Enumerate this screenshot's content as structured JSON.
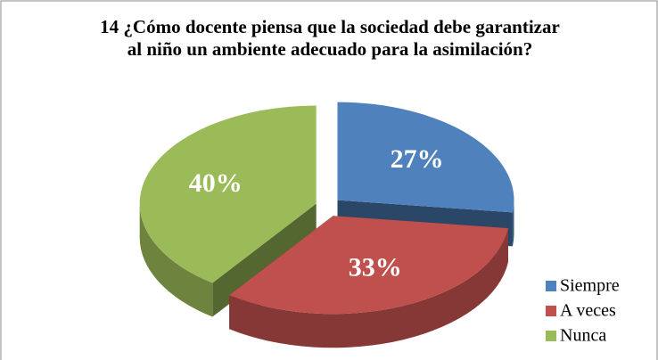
{
  "chart_data": {
    "type": "pie",
    "title": "14 ¿Cómo docente piensa que la sociedad debe garantizar al niño un ambiente adecuado para la asimilación?",
    "categories": [
      "Siempre",
      "A veces",
      "Nunca"
    ],
    "values": [
      27,
      33,
      40
    ],
    "value_labels": [
      "27%",
      "33%",
      "40%"
    ],
    "colors": [
      "#4f81bd",
      "#c0504d",
      "#9bbb59"
    ],
    "legend": "right"
  }
}
